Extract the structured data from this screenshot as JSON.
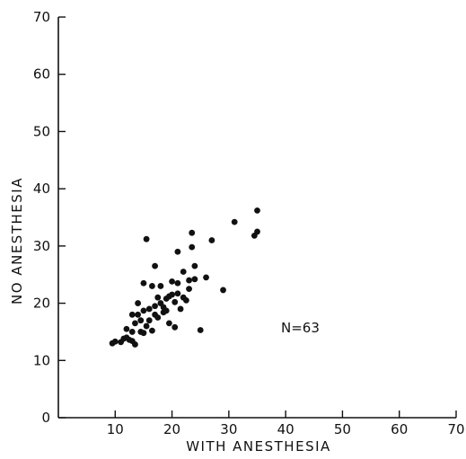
{
  "chart_data": {
    "type": "scatter",
    "title": "",
    "xlabel": "WITH ANESTHESIA",
    "ylabel": "NO ANESTHESIA",
    "xlim": [
      0,
      70
    ],
    "ylim": [
      0,
      70
    ],
    "x_ticks": [
      10,
      20,
      30,
      40,
      50,
      60,
      70
    ],
    "y_ticks": [
      0,
      10,
      20,
      30,
      40,
      50,
      60,
      70
    ],
    "grid": false,
    "annotation": "N=63",
    "points": [
      [
        9.5,
        13
      ],
      [
        10,
        13.3
      ],
      [
        11,
        13.2
      ],
      [
        11.5,
        13.8
      ],
      [
        12,
        15.5
      ],
      [
        12,
        14
      ],
      [
        12.5,
        13.6
      ],
      [
        13,
        15
      ],
      [
        13,
        13.4
      ],
      [
        13.5,
        12.8
      ],
      [
        13,
        18
      ],
      [
        13.5,
        16.5
      ],
      [
        14,
        18
      ],
      [
        14,
        20
      ],
      [
        14.5,
        17
      ],
      [
        14.5,
        15
      ],
      [
        15,
        14.8
      ],
      [
        15,
        18.7
      ],
      [
        15,
        23.5
      ],
      [
        15.5,
        16
      ],
      [
        15.5,
        31.2
      ],
      [
        16,
        17
      ],
      [
        16,
        19
      ],
      [
        16.5,
        23
      ],
      [
        16.5,
        15.2
      ],
      [
        17,
        26.5
      ],
      [
        17,
        19.5
      ],
      [
        17,
        18
      ],
      [
        17.5,
        21
      ],
      [
        17.5,
        17.5
      ],
      [
        18,
        23
      ],
      [
        18,
        20
      ],
      [
        18.5,
        19.3
      ],
      [
        18.5,
        18.4
      ],
      [
        19,
        18.7
      ],
      [
        19,
        20.8
      ],
      [
        19.5,
        21.2
      ],
      [
        19.5,
        16.5
      ],
      [
        20,
        21.5
      ],
      [
        20,
        23.8
      ],
      [
        20.5,
        20.2
      ],
      [
        20.5,
        15.8
      ],
      [
        21,
        23.5
      ],
      [
        21,
        21.7
      ],
      [
        21,
        29
      ],
      [
        21.5,
        19
      ],
      [
        22,
        25.5
      ],
      [
        22,
        21
      ],
      [
        22.5,
        20.5
      ],
      [
        23,
        24
      ],
      [
        23,
        22.5
      ],
      [
        23.5,
        32.3
      ],
      [
        23.5,
        29.8
      ],
      [
        24,
        24.2
      ],
      [
        24,
        26.5
      ],
      [
        25,
        15.3
      ],
      [
        26,
        24.5
      ],
      [
        27,
        31
      ],
      [
        29,
        22.3
      ],
      [
        31,
        34.2
      ],
      [
        34.5,
        31.8
      ],
      [
        35,
        36.2
      ],
      [
        35,
        32.5
      ]
    ]
  }
}
